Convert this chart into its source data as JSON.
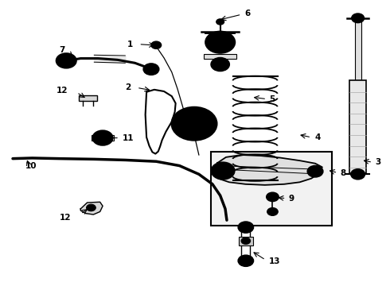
{
  "bg_color": "#ffffff",
  "fig_width": 4.9,
  "fig_height": 3.6,
  "dpi": 100,
  "text_color": "#000000",
  "line_color": "#000000",
  "label_fontsize": 7.5,
  "label_fontweight": "bold"
}
